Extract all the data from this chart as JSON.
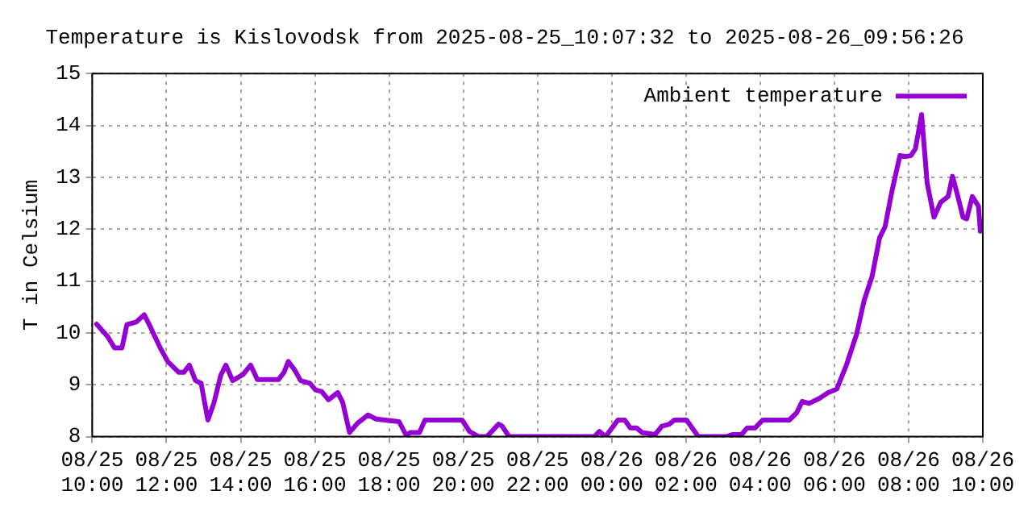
{
  "chart_data": {
    "type": "line",
    "title": "Temperature is Kislovodsk from 2025-08-25_10:07:32 to 2025-08-26_09:56:26",
    "ylabel": "T in Celsium",
    "legend": "top right",
    "grid": true,
    "marker": "none",
    "line_style": "solid",
    "xlim": [
      "2025-08-25T10:00",
      "2025-08-26T10:00"
    ],
    "xticks": [
      {
        "value": "2025-08-25T10:00",
        "label": "08/25\n10:00"
      },
      {
        "value": "2025-08-25T12:00",
        "label": "08/25\n12:00"
      },
      {
        "value": "2025-08-25T14:00",
        "label": "08/25\n14:00"
      },
      {
        "value": "2025-08-25T16:00",
        "label": "08/25\n16:00"
      },
      {
        "value": "2025-08-25T18:00",
        "label": "08/25\n18:00"
      },
      {
        "value": "2025-08-25T20:00",
        "label": "08/25\n20:00"
      },
      {
        "value": "2025-08-25T22:00",
        "label": "08/25\n22:00"
      },
      {
        "value": "2025-08-26T00:00",
        "label": "08/26\n00:00"
      },
      {
        "value": "2025-08-26T02:00",
        "label": "08/26\n02:00"
      },
      {
        "value": "2025-08-26T04:00",
        "label": "08/26\n04:00"
      },
      {
        "value": "2025-08-26T06:00",
        "label": "08/26\n06:00"
      },
      {
        "value": "2025-08-26T08:00",
        "label": "08/26\n08:00"
      },
      {
        "value": "2025-08-26T10:00",
        "label": "08/26\n10:00"
      }
    ],
    "ylim": [
      8,
      15
    ],
    "yticks": [
      8,
      9,
      10,
      11,
      12,
      13,
      14,
      15
    ],
    "series": [
      {
        "name": "Ambient temperature",
        "color": "#9400d3",
        "x": [
          "2025-08-25T10:07",
          "2025-08-25T10:25",
          "2025-08-25T10:36",
          "2025-08-25T10:48",
          "2025-08-25T10:56",
          "2025-08-25T11:11",
          "2025-08-25T11:24",
          "2025-08-25T11:33",
          "2025-08-25T11:50",
          "2025-08-25T12:02",
          "2025-08-25T12:20",
          "2025-08-25T12:28",
          "2025-08-25T12:37",
          "2025-08-25T12:47",
          "2025-08-25T12:56",
          "2025-08-25T13:07",
          "2025-08-25T13:17",
          "2025-08-25T13:28",
          "2025-08-25T13:36",
          "2025-08-25T13:47",
          "2025-08-25T14:04",
          "2025-08-25T14:16",
          "2025-08-25T14:27",
          "2025-08-25T15:01",
          "2025-08-25T15:10",
          "2025-08-25T15:17",
          "2025-08-25T15:27",
          "2025-08-25T15:37",
          "2025-08-25T15:52",
          "2025-08-25T16:01",
          "2025-08-25T16:11",
          "2025-08-25T16:22",
          "2025-08-25T16:37",
          "2025-08-25T16:45",
          "2025-08-25T16:56",
          "2025-08-25T17:09",
          "2025-08-25T17:26",
          "2025-08-25T17:39",
          "2025-08-25T18:16",
          "2025-08-25T18:28",
          "2025-08-25T18:34",
          "2025-08-25T18:49",
          "2025-08-25T18:58",
          "2025-08-25T19:58",
          "2025-08-25T20:10",
          "2025-08-25T20:25",
          "2025-08-25T20:38",
          "2025-08-25T20:57",
          "2025-08-25T21:03",
          "2025-08-25T21:14",
          "2025-08-25T23:32",
          "2025-08-25T23:40",
          "2025-08-25T23:50",
          "2025-08-26T00:10",
          "2025-08-26T00:21",
          "2025-08-26T00:30",
          "2025-08-26T00:40",
          "2025-08-26T00:49",
          "2025-08-26T01:10",
          "2025-08-26T01:21",
          "2025-08-26T01:33",
          "2025-08-26T01:41",
          "2025-08-26T02:01",
          "2025-08-26T02:20",
          "2025-08-26T03:05",
          "2025-08-26T03:15",
          "2025-08-26T03:30",
          "2025-08-26T03:39",
          "2025-08-26T03:52",
          "2025-08-26T04:04",
          "2025-08-26T04:47",
          "2025-08-26T04:59",
          "2025-08-26T05:08",
          "2025-08-26T05:19",
          "2025-08-26T05:36",
          "2025-08-26T05:50",
          "2025-08-26T06:04",
          "2025-08-26T06:20",
          "2025-08-26T06:36",
          "2025-08-26T06:48",
          "2025-08-26T07:01",
          "2025-08-26T07:13",
          "2025-08-26T07:22",
          "2025-08-26T07:33",
          "2025-08-26T07:46",
          "2025-08-26T07:56",
          "2025-08-26T08:04",
          "2025-08-26T08:11",
          "2025-08-26T08:21",
          "2025-08-26T08:30",
          "2025-08-26T08:41",
          "2025-08-26T08:52",
          "2025-08-26T09:04",
          "2025-08-26T09:11",
          "2025-08-26T09:19",
          "2025-08-26T09:28",
          "2025-08-26T09:34",
          "2025-08-26T09:43",
          "2025-08-26T09:53",
          "2025-08-26T09:56"
        ],
        "values": [
          10.17,
          9.93,
          9.71,
          9.71,
          10.16,
          10.21,
          10.35,
          10.14,
          9.71,
          9.45,
          9.24,
          9.24,
          9.38,
          9.08,
          9.03,
          8.32,
          8.66,
          9.19,
          9.38,
          9.08,
          9.2,
          9.38,
          9.1,
          9.1,
          9.24,
          9.45,
          9.29,
          9.08,
          9.03,
          8.9,
          8.87,
          8.71,
          8.85,
          8.66,
          8.08,
          8.26,
          8.42,
          8.34,
          8.29,
          8.02,
          8.08,
          8.08,
          8.32,
          8.32,
          8.1,
          8.0,
          8.0,
          8.24,
          8.2,
          8.0,
          8.0,
          8.1,
          8.0,
          8.32,
          8.32,
          8.17,
          8.17,
          8.08,
          8.04,
          8.2,
          8.24,
          8.32,
          8.32,
          8.0,
          8.0,
          8.04,
          8.04,
          8.17,
          8.17,
          8.32,
          8.32,
          8.46,
          8.68,
          8.64,
          8.74,
          8.85,
          8.92,
          9.4,
          9.98,
          10.62,
          11.09,
          11.83,
          12.05,
          12.73,
          13.42,
          13.4,
          13.42,
          13.55,
          14.21,
          12.89,
          12.23,
          12.52,
          12.63,
          13.02,
          12.66,
          12.23,
          12.2,
          12.63,
          12.44,
          11.96
        ]
      }
    ]
  }
}
